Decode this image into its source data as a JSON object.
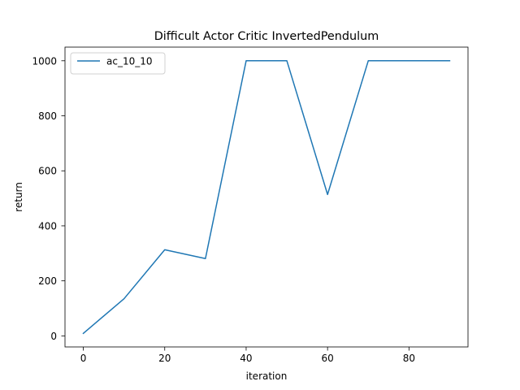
{
  "chart_data": {
    "type": "line",
    "title": "Difficult Actor Critic InvertedPendulum",
    "xlabel": "iteration",
    "ylabel": "return",
    "xlim": [
      -4.5,
      94.5
    ],
    "ylim": [
      -40.2,
      1049.6
    ],
    "x_ticks": [
      0,
      20,
      40,
      60,
      80
    ],
    "y_ticks": [
      0,
      200,
      400,
      600,
      800,
      1000
    ],
    "grid": false,
    "legend_position": "top-left",
    "x": [
      0,
      10,
      20,
      30,
      40,
      50,
      60,
      70,
      80,
      90
    ],
    "series": [
      {
        "name": "ac_10_10",
        "color": "#1f77b4",
        "values": [
          9,
          135,
          313,
          281,
          1000,
          1000,
          514,
          1000,
          1000,
          1000
        ]
      }
    ]
  }
}
